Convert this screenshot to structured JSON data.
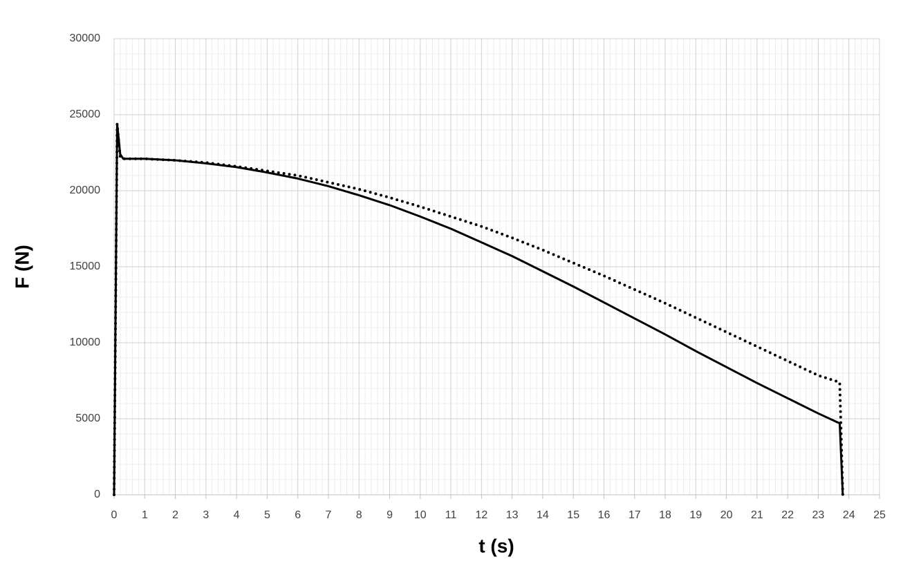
{
  "chart_data": {
    "type": "line",
    "x_label": "t (s)",
    "y_label": "F (N)",
    "x": [
      0,
      0.1,
      0.2,
      0.3,
      1,
      2,
      3,
      4,
      5,
      6,
      7,
      8,
      9,
      10,
      11,
      12,
      13,
      14,
      15,
      16,
      17,
      18,
      19,
      20,
      21,
      22,
      23,
      23.7,
      23.8
    ],
    "series": [
      {
        "color": "#000000",
        "style": "solid",
        "values": [
          0,
          24400,
          22400,
          22100,
          22100,
          22000,
          21800,
          21550,
          21200,
          20800,
          20300,
          19700,
          19050,
          18300,
          17500,
          16600,
          15700,
          14700,
          13700,
          12650,
          11600,
          10550,
          9450,
          8400,
          7350,
          6350,
          5350,
          4700,
          0
        ]
      },
      {
        "color": "#000000",
        "style": "dotted",
        "values": [
          0,
          24400,
          22200,
          22100,
          22100,
          22000,
          21850,
          21600,
          21300,
          21000,
          20550,
          20100,
          19550,
          18950,
          18300,
          17650,
          16900,
          16100,
          15250,
          14400,
          13500,
          12600,
          11650,
          10700,
          9750,
          8800,
          7850,
          7400,
          0
        ]
      }
    ],
    "xlim": [
      0,
      25
    ],
    "xticks": [
      0,
      1,
      2,
      3,
      4,
      5,
      6,
      7,
      8,
      9,
      10,
      11,
      12,
      13,
      14,
      15,
      16,
      17,
      18,
      19,
      20,
      21,
      22,
      23,
      24,
      25
    ],
    "ylim": [
      0,
      30000
    ],
    "yticks": [
      0,
      5000,
      10000,
      15000,
      20000,
      25000,
      30000
    ],
    "grid": true,
    "minor_grid": true
  }
}
